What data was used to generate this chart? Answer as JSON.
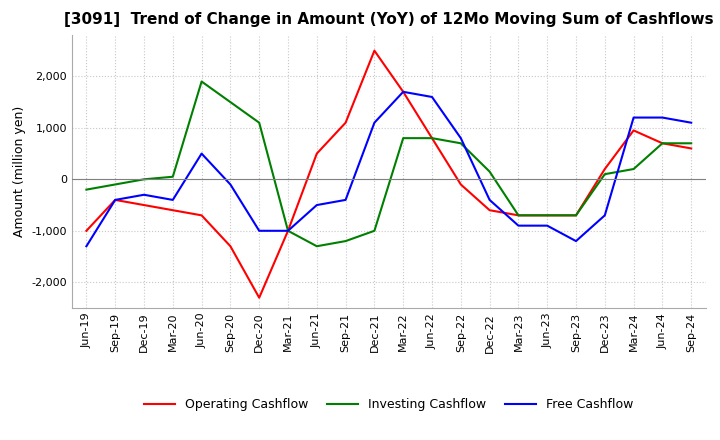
{
  "title": "[3091]  Trend of Change in Amount (YoY) of 12Mo Moving Sum of Cashflows",
  "ylabel": "Amount (million yen)",
  "ylim": [
    -2500,
    2800
  ],
  "yticks": [
    -2000,
    -1000,
    0,
    1000,
    2000
  ],
  "x_labels": [
    "Jun-19",
    "Sep-19",
    "Dec-19",
    "Mar-20",
    "Jun-20",
    "Sep-20",
    "Dec-20",
    "Mar-21",
    "Jun-21",
    "Sep-21",
    "Dec-21",
    "Mar-22",
    "Jun-22",
    "Sep-22",
    "Dec-22",
    "Mar-23",
    "Jun-23",
    "Sep-23",
    "Dec-23",
    "Mar-24",
    "Jun-24",
    "Sep-24"
  ],
  "operating": [
    -1000,
    -400,
    -500,
    -600,
    -700,
    -1300,
    -2300,
    -1000,
    500,
    1100,
    2500,
    1700,
    800,
    -100,
    -600,
    -700,
    -700,
    -700,
    200,
    950,
    700,
    600
  ],
  "investing": [
    -200,
    -100,
    0,
    50,
    1900,
    1500,
    1100,
    -1000,
    -1300,
    -1200,
    -1000,
    800,
    800,
    700,
    150,
    -700,
    -700,
    -700,
    100,
    200,
    700,
    700
  ],
  "free": [
    -1300,
    -400,
    -300,
    -400,
    500,
    -100,
    -1000,
    -1000,
    -500,
    -400,
    1100,
    1700,
    1600,
    800,
    -400,
    -900,
    -900,
    -1200,
    -700,
    1200,
    1200,
    1100
  ],
  "op_color": "#ff0000",
  "inv_color": "#008000",
  "free_color": "#0000ff",
  "bg_color": "#ffffff",
  "grid_color": "#c8c8c8",
  "title_fontsize": 11,
  "label_fontsize": 9,
  "tick_fontsize": 8,
  "legend_fontsize": 9
}
